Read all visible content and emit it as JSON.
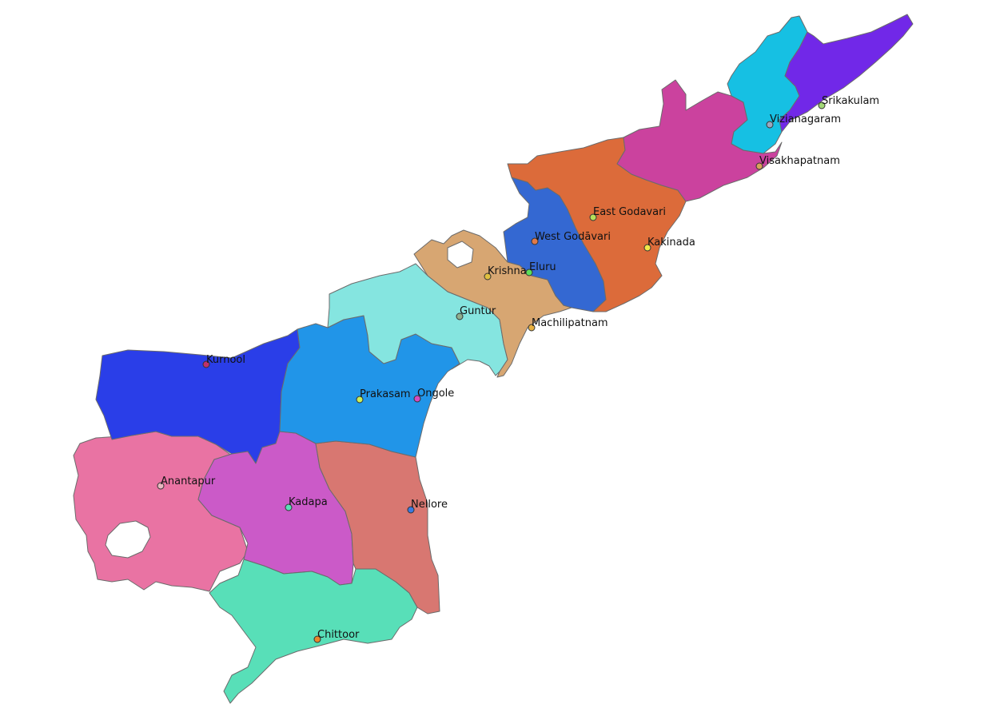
{
  "map": {
    "districts": [
      {
        "key": "srikakulam",
        "name": "Srikakulam",
        "color": "#7128e8",
        "marker_color": "#a3d977"
      },
      {
        "key": "vizianagaram",
        "name": "Vizianagaram",
        "color": "#16c0e3",
        "marker_color": "#9aa8c0"
      },
      {
        "key": "visakhapatnam",
        "name": "Visakhapatnam",
        "color": "#cb429e",
        "marker_color": "#d9a25a"
      },
      {
        "key": "east-godavari",
        "name": "East Godavari",
        "color": "#dc6b3a",
        "marker_color": "#b5e05a"
      },
      {
        "key": "kakinada",
        "name": "Kakinada",
        "color": "#dc6b3a",
        "marker_color": "#f0e84a"
      },
      {
        "key": "west-godavari",
        "name": "West Godāvari",
        "color": "#3468d2",
        "marker_color": "#e07a4a"
      },
      {
        "key": "eluru",
        "name": "Eluru",
        "color": "#3468d2",
        "marker_color": "#5be05a"
      },
      {
        "key": "krishna",
        "name": "Krishna",
        "color": "#d7a672",
        "marker_color": "#e0c040"
      },
      {
        "key": "machilipatnam",
        "name": "Machilipatnam",
        "color": "#d7a672",
        "marker_color": "#e8b040"
      },
      {
        "key": "guntur",
        "name": "Guntur",
        "color": "#85e5e0",
        "marker_color": "#8fb08f"
      },
      {
        "key": "prakasam",
        "name": "Prakasam",
        "color": "#2195e8",
        "marker_color": "#c9ef5a"
      },
      {
        "key": "ongole",
        "name": "Ongole",
        "color": "#2195e8",
        "marker_color": "#d64ac0"
      },
      {
        "key": "kurnool",
        "name": "Kurnool",
        "color": "#2a3ee8",
        "marker_color": "#c0306a"
      },
      {
        "key": "anantapur",
        "name": "Anantapur",
        "color": "#e973a3",
        "marker_color": "#e8b8c0"
      },
      {
        "key": "kadapa",
        "name": "Kadapa",
        "color": "#cb5ac8",
        "marker_color": "#5ae0b8"
      },
      {
        "key": "nellore",
        "name": "Nellore",
        "color": "#d87771",
        "marker_color": "#3a7ae0"
      },
      {
        "key": "chittoor",
        "name": "Chittoor",
        "color": "#58dfb8",
        "marker_color": "#e8862a"
      }
    ]
  }
}
